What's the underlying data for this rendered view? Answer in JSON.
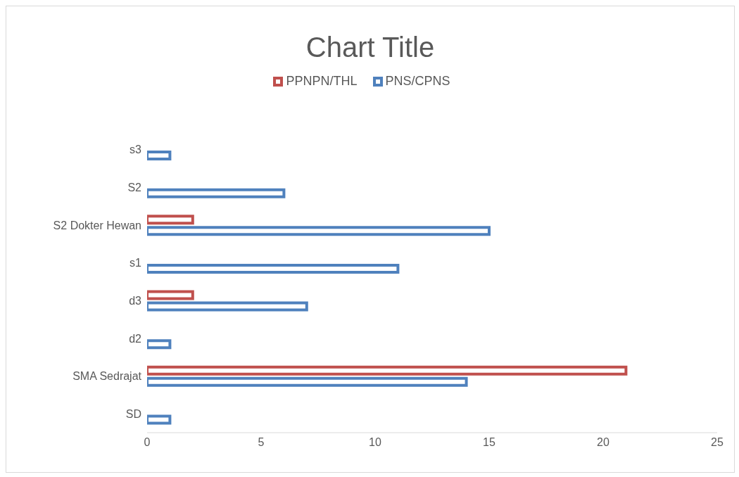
{
  "chart_data": {
    "type": "bar",
    "orientation": "horizontal",
    "title": "Chart Title",
    "categories": [
      "s3",
      "S2",
      "S2 Dokter Hewan",
      "s1",
      "d3",
      "d2",
      "SMA Sedrajat",
      "SD"
    ],
    "series": [
      {
        "name": "PPNPN/THL",
        "color": "#c0504d",
        "values": [
          null,
          null,
          2,
          null,
          2,
          null,
          21,
          null
        ]
      },
      {
        "name": "PNS/CPNS",
        "color": "#4f81bd",
        "values": [
          1,
          6,
          15,
          11,
          7,
          1,
          14,
          1
        ]
      }
    ],
    "xlim": [
      0,
      25
    ],
    "xticks": [
      0,
      5,
      10,
      15,
      20,
      25
    ],
    "legend": "top"
  }
}
